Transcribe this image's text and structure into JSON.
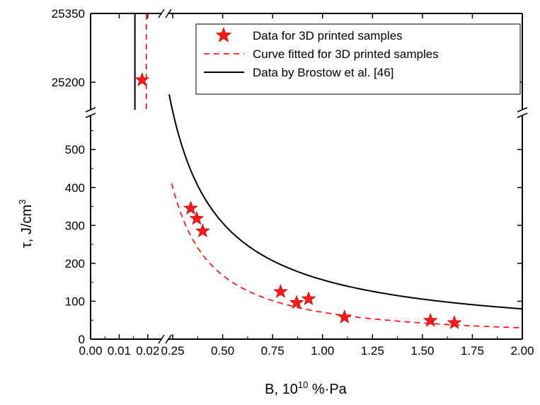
{
  "chart_data": {
    "type": "scatter",
    "title": "",
    "xlabel": "B, 10",
    "xlabel_sup": "10",
    "xlabel_suffix": " %·Pa",
    "ylabel": "τ, J/cm",
    "ylabel_sup": "3",
    "x_axis": {
      "broken": true,
      "segment_left": {
        "range": [
          0.0,
          0.025
        ],
        "ticks": [
          "0.00",
          "0.01",
          "0.02"
        ]
      },
      "segment_right": {
        "range": [
          0.225,
          2.0
        ],
        "ticks": [
          "0.25",
          "0.50",
          "0.75",
          "1.00",
          "1.25",
          "1.50",
          "1.75",
          "2.00"
        ]
      }
    },
    "y_axis": {
      "broken": true,
      "segment_bottom": {
        "range": [
          0,
          590
        ],
        "ticks": [
          "0",
          "100",
          "200",
          "300",
          "400",
          "500"
        ]
      },
      "segment_top": {
        "range": [
          25140,
          25350
        ],
        "ticks": [
          "25200",
          "25350"
        ]
      }
    },
    "legend": {
      "placement": "top-right",
      "entries": [
        {
          "label": "Data for 3D printed samples",
          "style": "star",
          "color": "#ff1a1a"
        },
        {
          "label": "Curve fitted for 3D printed samples",
          "style": "dashed",
          "color": "#ff1a1a"
        },
        {
          "label": "Data by Brostow et al. [46]",
          "style": "solid",
          "color": "#000000"
        }
      ]
    },
    "series": [
      {
        "name": "Data for 3D printed samples",
        "kind": "points",
        "color": "#ff1a1a",
        "x": [
          0.018,
          0.34,
          0.37,
          0.4,
          0.79,
          0.87,
          0.93,
          1.11,
          1.54,
          1.66
        ],
        "y": [
          25205,
          345,
          318,
          285,
          125,
          96,
          106,
          58,
          49,
          43
        ]
      },
      {
        "name": "Curve fitted for 3D printed samples",
        "kind": "dashed-line",
        "color": "#ff1a1a",
        "model": "power",
        "coefficient": 70.8,
        "exponent": -1.25,
        "x_range": [
          0.245,
          2.0
        ],
        "vertical_segment_x": 0.0195
      },
      {
        "name": "Data by Brostow et al. [46]",
        "kind": "solid-line",
        "color": "#000000",
        "model": "power",
        "coefficient": 156.5,
        "exponent": -0.97,
        "x_range": [
          0.232,
          2.0
        ],
        "vertical_segment_x": 0.0155
      }
    ],
    "grid": false
  }
}
